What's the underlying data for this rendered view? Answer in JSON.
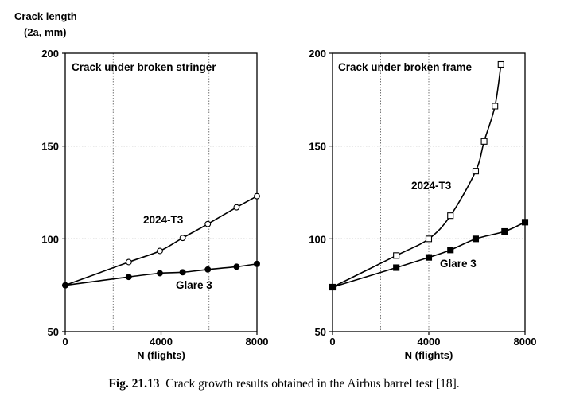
{
  "figure": {
    "ylabel_line1": "Crack length",
    "ylabel_line2": "(2a, mm)",
    "caption_label": "Fig. 21.13",
    "caption_text": "Crack growth results obtained in the Airbus barrel test [18]."
  },
  "chart_data": [
    {
      "type": "line",
      "title": "Crack under broken stringer",
      "xlabel": "N (flights)",
      "ylabel": "",
      "xlim": [
        0,
        8000
      ],
      "ylim": [
        50,
        200
      ],
      "xticks": [
        0,
        4000,
        8000
      ],
      "yticks": [
        50,
        100,
        150,
        200
      ],
      "grid": true,
      "series": [
        {
          "name": "2024-T3",
          "marker": "open-circle",
          "x": [
            0,
            2650,
            3950,
            4900,
            5950,
            7150,
            8000
          ],
          "y": [
            75,
            87.5,
            93.5,
            100.5,
            108,
            117,
            123
          ]
        },
        {
          "name": "Glare 3",
          "marker": "filled-circle",
          "x": [
            0,
            2650,
            3950,
            4900,
            5950,
            7150,
            8000
          ],
          "y": [
            75,
            79.5,
            81.5,
            82,
            83.5,
            85,
            86.5
          ]
        }
      ]
    },
    {
      "type": "line",
      "title": "Crack under broken frame",
      "xlabel": "N (flights)",
      "ylabel": "",
      "xlim": [
        0,
        8000
      ],
      "ylim": [
        50,
        200
      ],
      "xticks": [
        0,
        4000,
        8000
      ],
      "yticks": [
        50,
        100,
        150,
        200
      ],
      "grid": true,
      "series": [
        {
          "name": "2024-T3",
          "marker": "open-square",
          "x": [
            0,
            2650,
            4000,
            4900,
            5950,
            6300,
            6750,
            7000
          ],
          "y": [
            74,
            91,
            100,
            112.5,
            136.5,
            152.5,
            171.5,
            194
          ]
        },
        {
          "name": "Glare 3",
          "marker": "filled-square",
          "x": [
            0,
            2650,
            4000,
            4900,
            5950,
            7150,
            8000
          ],
          "y": [
            74,
            84.5,
            90,
            94,
            100,
            104,
            109
          ]
        }
      ]
    }
  ]
}
